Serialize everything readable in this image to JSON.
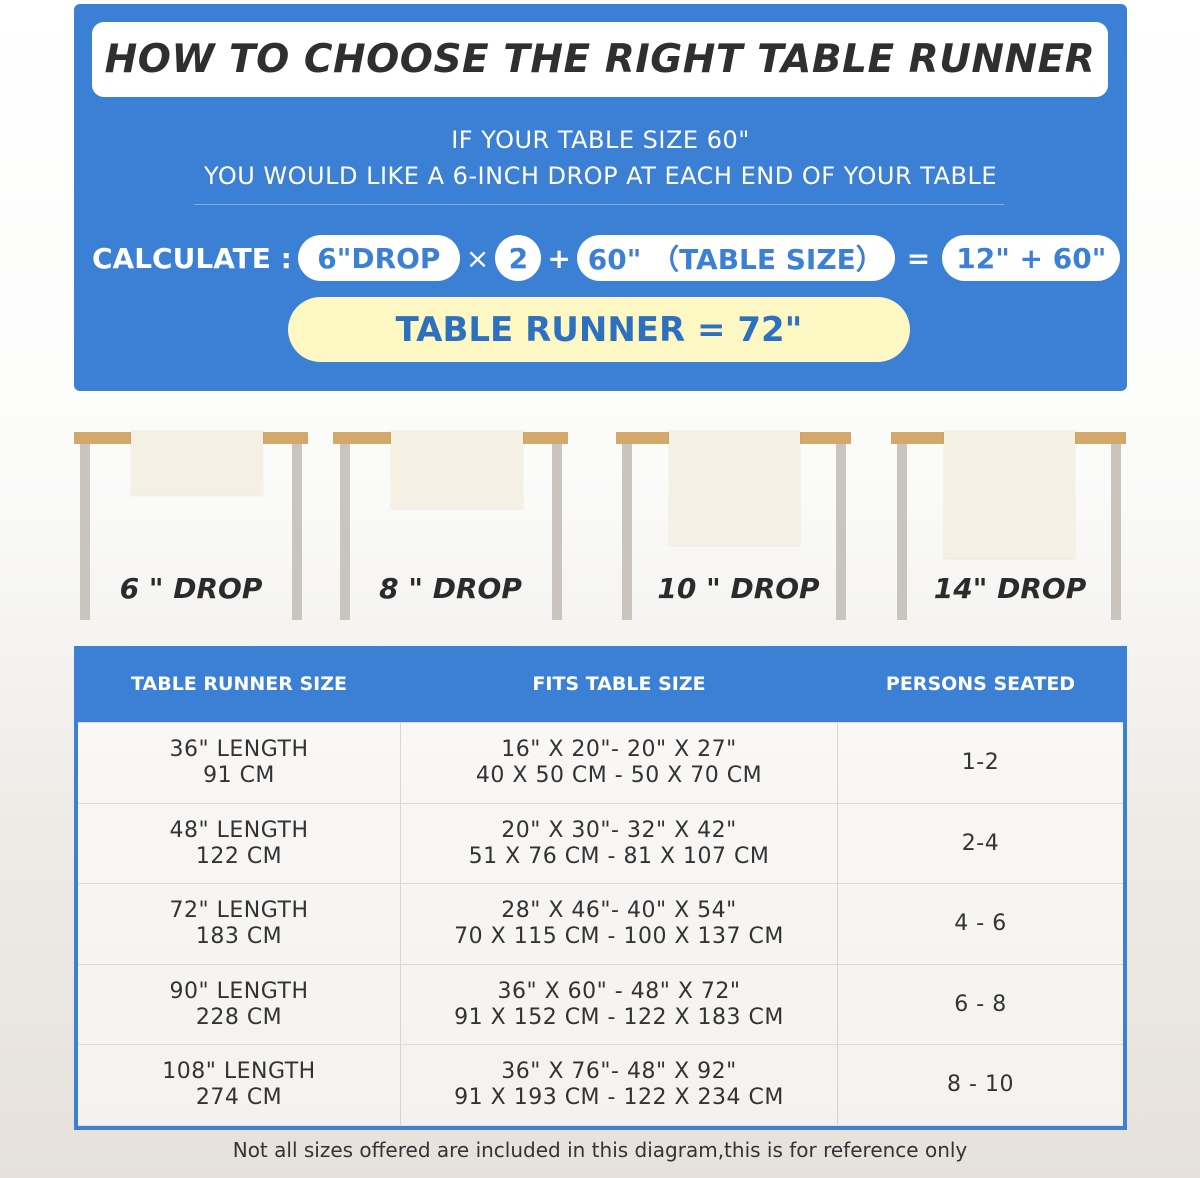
{
  "title": "HOW TO CHOOSE THE RIGHT TABLE RUNNER",
  "intro": [
    "IF YOUR TABLE SIZE 60\"",
    "YOU WOULD LIKE A 6-INCH DROP AT EACH END OF YOUR TABLE"
  ],
  "calc": {
    "label": "CALCULATE :",
    "drop": "6\"DROP",
    "times": "×",
    "multiplier": "2",
    "plus": "+",
    "table": "60\" （TABLE SIZE）",
    "equals": "=",
    "sum": "12\" + 60\"",
    "result": "TABLE RUNNER = 72\""
  },
  "drops": [
    "6 \" DROP",
    "8 \" DROP",
    "10 \" DROP",
    "14\" DROP"
  ],
  "colors": {
    "brand_blue": "#3b80d4",
    "result_yellow": "#fdf7c3",
    "table_top": "#d4a86a"
  },
  "table": {
    "headers": [
      "TABLE RUNNER SIZE",
      "FITS TABLE SIZE",
      "PERSONS SEATED"
    ],
    "rows": [
      {
        "size": [
          "36\" LENGTH",
          "91 CM"
        ],
        "fits": [
          "16\" X 20\"- 20\" X 27\"",
          "40 X 50 CM - 50 X 70 CM"
        ],
        "persons": "1-2"
      },
      {
        "size": [
          "48\" LENGTH",
          "122 CM"
        ],
        "fits": [
          "20\" X 30\"- 32\" X 42\"",
          "51 X 76 CM - 81 X 107 CM"
        ],
        "persons": "2-4"
      },
      {
        "size": [
          "72\" LENGTH",
          "183 CM"
        ],
        "fits": [
          "28\" X 46\"- 40\" X 54\"",
          "70 X 115 CM - 100 X 137 CM"
        ],
        "persons": "4 - 6"
      },
      {
        "size": [
          "90\" LENGTH",
          "228 CM"
        ],
        "fits": [
          "36\" X 60\" - 48\" X 72\"",
          "91 X 152 CM - 122 X 183 CM"
        ],
        "persons": "6 - 8"
      },
      {
        "size": [
          "108\" LENGTH",
          "274 CM"
        ],
        "fits": [
          "36\" X 76\"- 48\" X 92\"",
          "91 X 193 CM - 122 X 234 CM"
        ],
        "persons": "8 - 10"
      }
    ]
  },
  "note": "Not all sizes offered are included in this diagram,this is for reference only"
}
